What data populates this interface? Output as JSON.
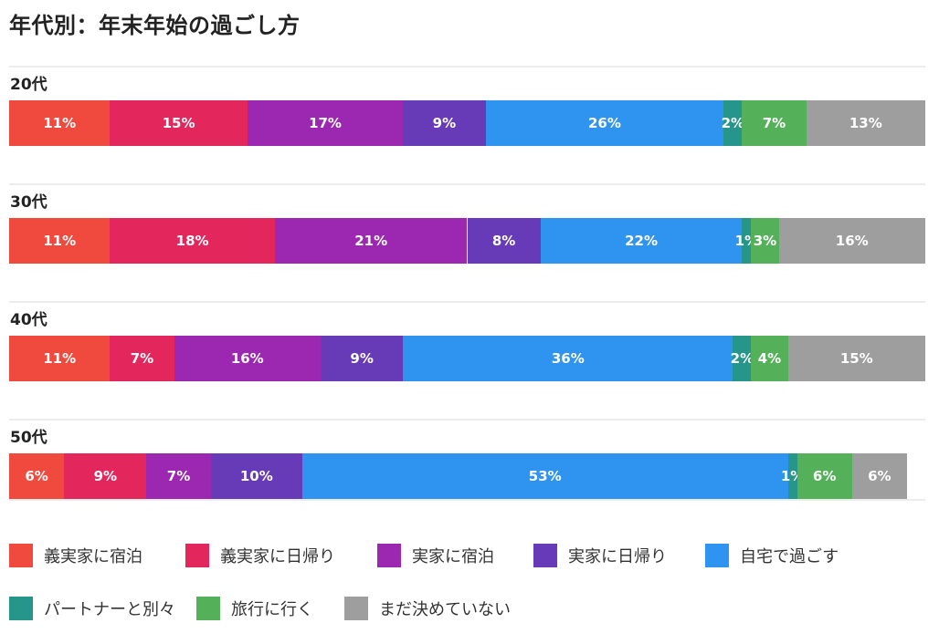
{
  "chart_data": {
    "type": "bar",
    "orientation": "horizontal-stacked",
    "title": "年代別：年末年始の過ごし方",
    "unit": "%",
    "legend_position": "bottom",
    "categories": [
      "20代",
      "30代",
      "40代",
      "50代"
    ],
    "series": [
      {
        "name": "義実家に宿泊",
        "color": "#f0493e",
        "values": [
          11,
          11,
          11,
          6
        ],
        "labels": [
          "11%",
          "11%",
          "11%",
          "6%"
        ]
      },
      {
        "name": "義実家に日帰り",
        "color": "#e3275d",
        "values": [
          15,
          18,
          7,
          9
        ],
        "labels": [
          "15%",
          "18%",
          "7%",
          "9%"
        ]
      },
      {
        "name": "実家に宿泊",
        "color": "#9c27b0",
        "values": [
          17,
          21,
          16,
          7
        ],
        "labels": [
          "17%",
          "21%",
          "16%",
          "7%"
        ]
      },
      {
        "name": "実家に日帰り",
        "color": "#673ab7",
        "values": [
          9,
          8,
          9,
          10
        ],
        "labels": [
          "9%",
          "8%",
          "9%",
          "10%"
        ]
      },
      {
        "name": "自宅で過ごす",
        "color": "#2f94ef",
        "values": [
          26,
          22,
          36,
          53
        ],
        "labels": [
          "26%",
          "22%",
          "36%",
          "53%"
        ]
      },
      {
        "name": "パートナーと別々",
        "color": "#26968a",
        "values": [
          2,
          1,
          2,
          1
        ],
        "labels": [
          "2%",
          "1%",
          "2%",
          "1%"
        ]
      },
      {
        "name": "旅行に行く",
        "color": "#55b05a",
        "values": [
          7,
          3,
          4,
          6
        ],
        "labels": [
          "7%",
          "3%",
          "4%",
          "6%"
        ]
      },
      {
        "name": "まだ決めていない",
        "color": "#9e9e9e",
        "values": [
          13,
          16,
          15,
          6
        ],
        "labels": [
          "13%",
          "16%",
          "15%",
          "6%"
        ]
      }
    ]
  }
}
